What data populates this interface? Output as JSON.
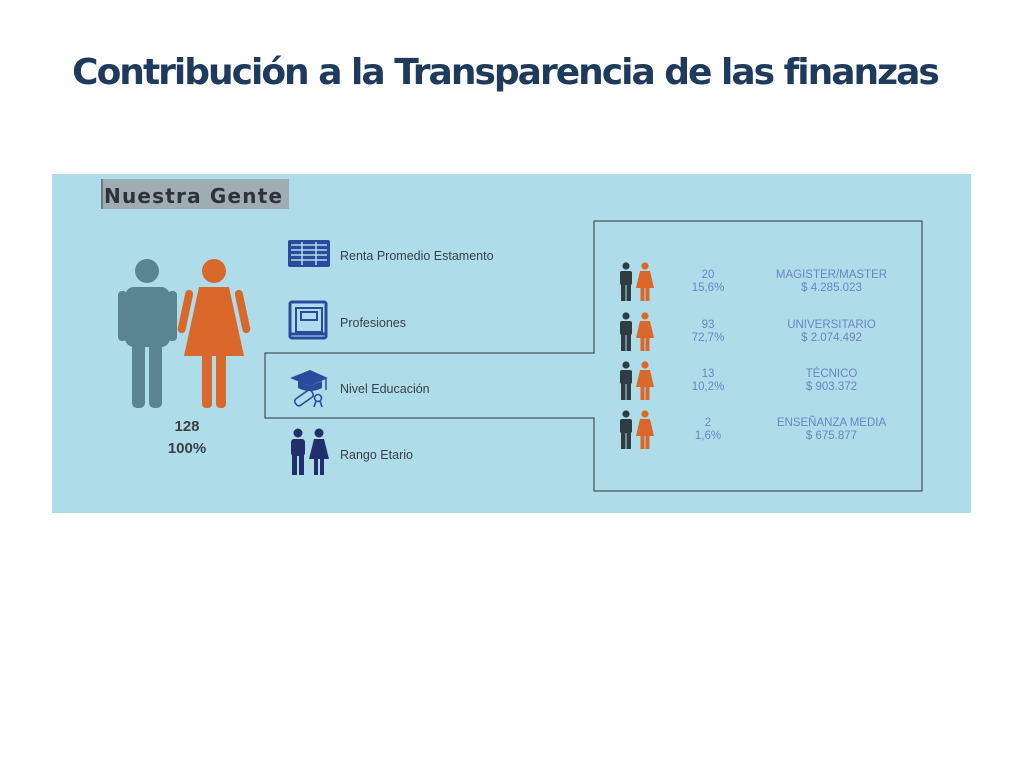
{
  "slide": {
    "title": "Contribución a la Transparencia de las finanzas"
  },
  "panel": {
    "section_title": "Nuestra Gente",
    "total_count": "128",
    "total_percent": "100%",
    "categories": [
      {
        "label": "Renta Promedio Estamento",
        "icon": "money-stack-icon"
      },
      {
        "label": "Profesiones",
        "icon": "book-icon"
      },
      {
        "label": "Nivel Educación",
        "icon": "graduation-cap-diploma-icon",
        "selected": true
      },
      {
        "label": "Rango Etario",
        "icon": "man-woman-icon"
      }
    ],
    "education_levels": [
      {
        "count": "20",
        "percent": "15,6%",
        "level": "MAGISTER/MASTER",
        "income": "$ 4.285.023"
      },
      {
        "count": "93",
        "percent": "72,7%",
        "level": "UNIVERSITARIO",
        "income": "$ 2.074.492"
      },
      {
        "count": "13",
        "percent": "10,2%",
        "level": "TÉCNICO",
        "income": "$ 903.372"
      },
      {
        "count": "2",
        "percent": "1,6%",
        "level": "ENSEÑANZA MEDIA",
        "income": "$ 675.877"
      }
    ]
  },
  "colors": {
    "title": "#1e3a5c",
    "panel_background": "#aedde9",
    "male_large": "#5a8590",
    "female": "#d9682a",
    "male_small": "#2f3d42",
    "icon_blue": "#2b4a9e",
    "row_text": "#6d82c4"
  }
}
